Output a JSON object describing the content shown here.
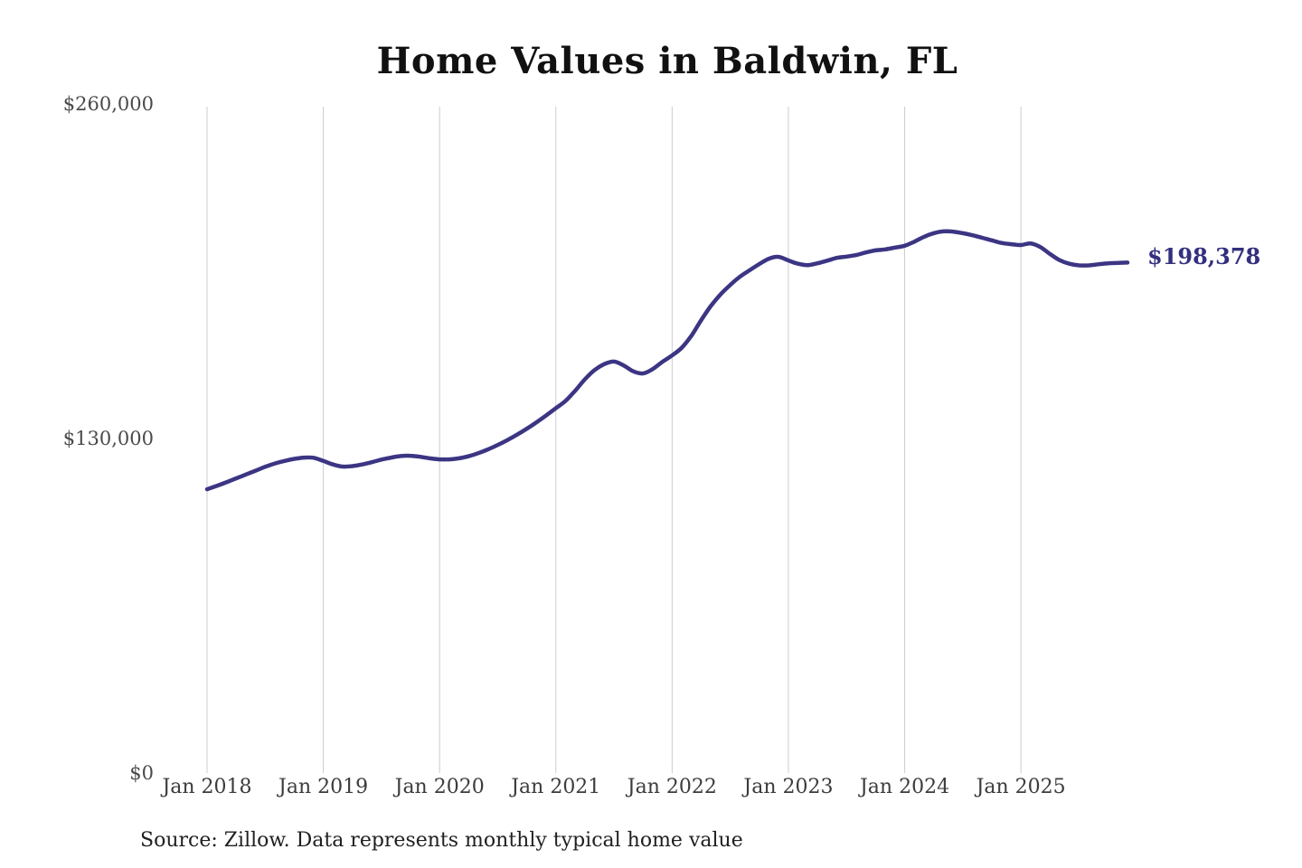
{
  "chart": {
    "title": "Home Values in Baldwin, FL",
    "latest_value_label": "$198,378",
    "source_note": "Source: Zillow. Data represents monthly typical home value"
  },
  "chart_data": {
    "type": "line",
    "title": "Home Values in Baldwin, FL",
    "series_name": "Monthly typical home value",
    "x_start": "2018-01",
    "x_end": "2025-12",
    "x_tick_labels": [
      "Jan 2018",
      "Jan 2019",
      "Jan 2020",
      "Jan 2021",
      "Jan 2022",
      "Jan 2023",
      "Jan 2024",
      "Jan 2025"
    ],
    "x_tick_month_indices": [
      0,
      12,
      24,
      36,
      48,
      60,
      72,
      84
    ],
    "y_ticks": [
      {
        "label": "$260,000",
        "value": 260000
      },
      {
        "label": "$130,000",
        "value": 130000
      },
      {
        "label": "$0",
        "value": 0
      }
    ],
    "ylim": [
      0,
      260000
    ],
    "grid": "vertical-only",
    "grid_color": "#cccccc",
    "line_color": "#3b3583",
    "latest_value": 198378,
    "values": [
      110300,
      111600,
      113000,
      114500,
      116000,
      117500,
      119000,
      120300,
      121300,
      122100,
      122600,
      122500,
      121300,
      119900,
      119100,
      119300,
      119900,
      120800,
      121800,
      122600,
      123200,
      123300,
      122900,
      122300,
      121900,
      121900,
      122300,
      123100,
      124300,
      125800,
      127500,
      129400,
      131500,
      133800,
      136300,
      139000,
      141800,
      144600,
      148600,
      153000,
      156600,
      158900,
      159900,
      158400,
      156100,
      155300,
      157000,
      159800,
      162300,
      165300,
      170000,
      176000,
      181500,
      186000,
      189700,
      192900,
      195400,
      197800,
      199900,
      200600,
      199200,
      197900,
      197400,
      198100,
      199100,
      200200,
      200700,
      201300,
      202300,
      203100,
      203500,
      204200,
      204900,
      206500,
      208400,
      209800,
      210500,
      210400,
      209800,
      209000,
      208000,
      207000,
      206000,
      205500,
      205200,
      205800,
      204400,
      201700,
      199300,
      197900,
      197300,
      197300,
      197700,
      198100,
      198250,
      198378
    ]
  }
}
